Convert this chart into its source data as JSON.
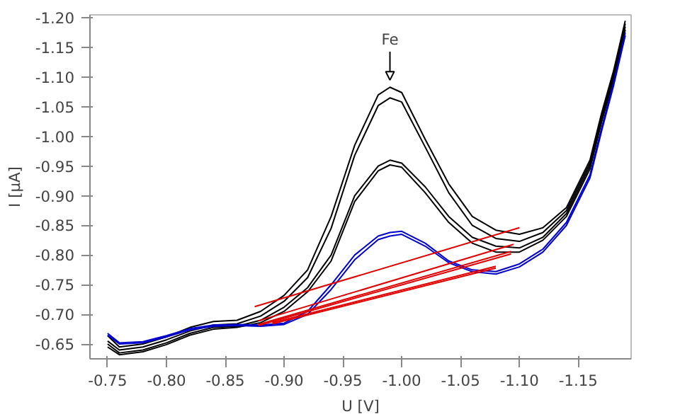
{
  "chart_data": {
    "type": "line",
    "xlabel": "U [V]",
    "ylabel": "I [µA]",
    "x": [
      -0.75,
      -0.76,
      -0.78,
      -0.8,
      -0.82,
      -0.84,
      -0.86,
      -0.88,
      -0.9,
      -0.92,
      -0.94,
      -0.96,
      -0.98,
      -0.99,
      -1.0,
      -1.02,
      -1.04,
      -1.06,
      -1.08,
      -1.1,
      -1.12,
      -1.14,
      -1.16,
      -1.17,
      -1.18,
      -1.19
    ],
    "series": [
      {
        "color": "#000000",
        "values": [
          -0.664,
          -0.645,
          -0.65,
          -0.662,
          -0.678,
          -0.688,
          -0.69,
          -0.705,
          -0.732,
          -0.775,
          -0.865,
          -0.985,
          -1.07,
          -1.083,
          -1.074,
          -0.995,
          -0.92,
          -0.865,
          -0.842,
          -0.835,
          -0.846,
          -0.88,
          -0.96,
          -1.04,
          -1.11,
          -1.195
        ]
      },
      {
        "color": "#000000",
        "values": [
          -0.655,
          -0.64,
          -0.645,
          -0.657,
          -0.672,
          -0.682,
          -0.684,
          -0.697,
          -0.722,
          -0.762,
          -0.845,
          -0.968,
          -1.052,
          -1.065,
          -1.058,
          -0.982,
          -0.905,
          -0.85,
          -0.828,
          -0.823,
          -0.838,
          -0.875,
          -0.955,
          -1.035,
          -1.105,
          -1.19
        ]
      },
      {
        "color": "#000000",
        "values": [
          -0.65,
          -0.635,
          -0.64,
          -0.652,
          -0.668,
          -0.678,
          -0.68,
          -0.69,
          -0.712,
          -0.745,
          -0.8,
          -0.9,
          -0.95,
          -0.96,
          -0.955,
          -0.915,
          -0.865,
          -0.83,
          -0.815,
          -0.812,
          -0.83,
          -0.87,
          -0.95,
          -1.03,
          -1.1,
          -1.185
        ]
      },
      {
        "color": "#000000",
        "values": [
          -0.645,
          -0.632,
          -0.637,
          -0.649,
          -0.665,
          -0.675,
          -0.678,
          -0.686,
          -0.705,
          -0.738,
          -0.79,
          -0.89,
          -0.942,
          -0.952,
          -0.948,
          -0.905,
          -0.855,
          -0.82,
          -0.805,
          -0.805,
          -0.825,
          -0.865,
          -0.945,
          -1.025,
          -1.095,
          -1.18
        ]
      },
      {
        "color": "#0000cc",
        "values": [
          -0.668,
          -0.652,
          -0.654,
          -0.664,
          -0.676,
          -0.682,
          -0.683,
          -0.682,
          -0.685,
          -0.705,
          -0.75,
          -0.8,
          -0.832,
          -0.838,
          -0.84,
          -0.82,
          -0.79,
          -0.775,
          -0.772,
          -0.785,
          -0.81,
          -0.855,
          -0.935,
          -1.015,
          -1.09,
          -1.175
        ]
      },
      {
        "color": "#0000cc",
        "values": [
          -0.665,
          -0.65,
          -0.652,
          -0.662,
          -0.674,
          -0.68,
          -0.681,
          -0.68,
          -0.683,
          -0.7,
          -0.742,
          -0.792,
          -0.826,
          -0.832,
          -0.835,
          -0.815,
          -0.787,
          -0.772,
          -0.768,
          -0.78,
          -0.805,
          -0.85,
          -0.93,
          -1.01,
          -1.085,
          -1.17
        ]
      },
      {
        "color": "#e00000",
        "x": [
          -0.875,
          -1.1
        ],
        "values": [
          -0.713,
          -0.846
        ]
      },
      {
        "color": "#e00000",
        "x": [
          -0.878,
          -1.095
        ],
        "values": [
          -0.689,
          -0.818
        ]
      },
      {
        "color": "#e00000",
        "x": [
          -0.878,
          -1.093
        ],
        "values": [
          -0.683,
          -0.806
        ]
      },
      {
        "color": "#e00000",
        "x": [
          -0.878,
          -1.093
        ],
        "values": [
          -0.681,
          -0.802
        ]
      },
      {
        "color": "#e00000",
        "x": [
          -0.89,
          -1.08
        ],
        "values": [
          -0.684,
          -0.778
        ]
      },
      {
        "color": "#e00000",
        "x": [
          -0.89,
          -1.08
        ],
        "values": [
          -0.686,
          -0.781
        ]
      }
    ],
    "annotations": [
      {
        "text": "Fe",
        "x": -0.99,
        "y": -1.083
      }
    ],
    "xlim": [
      -0.735,
      -1.195
    ],
    "ylim": [
      -0.625,
      -1.205
    ],
    "xticks": [
      -0.75,
      {
        "value": -0.8,
        "label": "-0.80"
      },
      -0.85,
      {
        "value": -0.9,
        "label": "-0.90"
      },
      -0.95,
      {
        "value": -1.0,
        "label": "-1.00"
      },
      -1.05,
      {
        "value": -1.1,
        "label": "-1.10"
      },
      -1.15
    ],
    "yticks": [
      -0.65,
      {
        "value": -0.7,
        "label": "-0.70"
      },
      -0.75,
      {
        "value": -0.8,
        "label": "-0.80"
      },
      -0.85,
      {
        "value": -0.9,
        "label": "-0.90"
      },
      -0.95,
      {
        "value": -1.0,
        "label": "-1.00"
      },
      -1.05,
      {
        "value": -1.1,
        "label": "-1.10"
      },
      -1.15,
      {
        "value": -1.2,
        "label": "-1.20"
      }
    ],
    "grid": false
  }
}
